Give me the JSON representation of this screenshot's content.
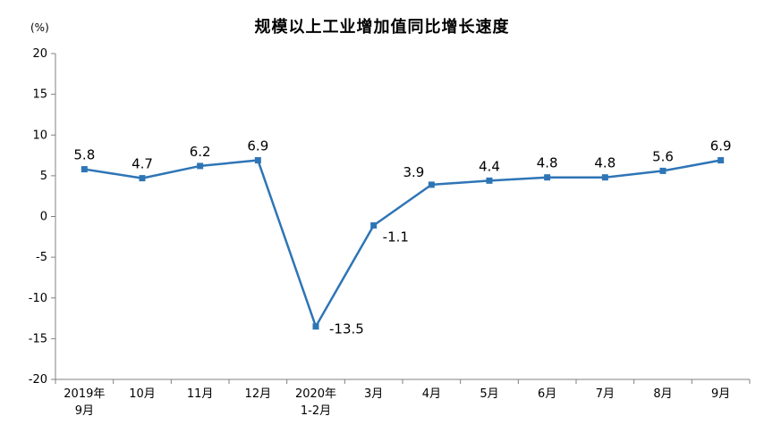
{
  "chart": {
    "title": "规模以上工业增加值同比增长速度",
    "unit_label": "(%)"
  },
  "chart_data": {
    "type": "line",
    "title": "规模以上工业增加值同比增长速度",
    "ylabel": "(%)",
    "xlabel": "",
    "categories": [
      "2019年\n9月",
      "10月",
      "11月",
      "12月",
      "2020年\n1-2月",
      "3月",
      "4月",
      "5月",
      "6月",
      "7月",
      "8月",
      "9月"
    ],
    "values": [
      5.8,
      4.7,
      6.2,
      6.9,
      -13.5,
      -1.1,
      3.9,
      4.4,
      4.8,
      4.8,
      5.6,
      6.9
    ],
    "ylim": [
      -20,
      20
    ],
    "ytick_step": 5,
    "line_color": "#2e75b6",
    "marker": "square",
    "grid": false,
    "legend_position": "none"
  }
}
